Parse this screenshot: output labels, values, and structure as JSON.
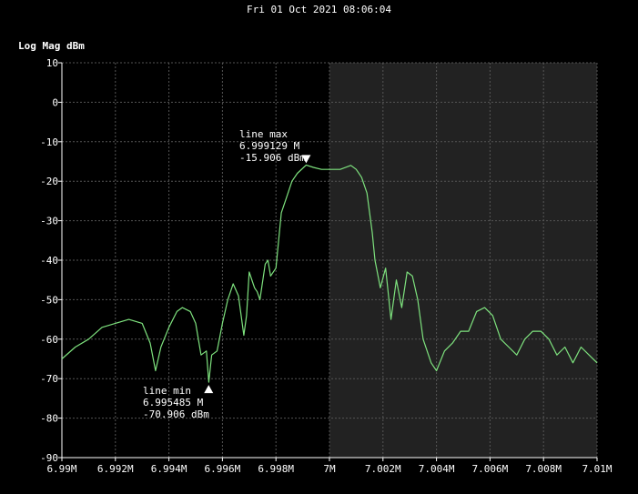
{
  "header": {
    "timestamp": "Fri 01 Oct 2021 08:06:04"
  },
  "chart_data": {
    "type": "line",
    "title": "",
    "ylabel": "Log Mag dBm",
    "xlabel": "",
    "xlim": [
      6.99,
      7.01
    ],
    "ylim": [
      -90,
      10
    ],
    "grid": true,
    "highlight_band": [
      7.0,
      7.01
    ],
    "colors": {
      "trace": "#7ee27e",
      "highlight": "#222222",
      "grid": "#555555"
    },
    "x_ticks": [
      {
        "v": 6.99,
        "label": "6.99M"
      },
      {
        "v": 6.992,
        "label": "6.992M"
      },
      {
        "v": 6.994,
        "label": "6.994M"
      },
      {
        "v": 6.996,
        "label": "6.996M"
      },
      {
        "v": 6.998,
        "label": "6.998M"
      },
      {
        "v": 7.0,
        "label": "7M"
      },
      {
        "v": 7.002,
        "label": "7.002M"
      },
      {
        "v": 7.004,
        "label": "7.004M"
      },
      {
        "v": 7.006,
        "label": "7.006M"
      },
      {
        "v": 7.008,
        "label": "7.008M"
      },
      {
        "v": 7.01,
        "label": "7.01M"
      }
    ],
    "y_ticks": [
      10,
      0,
      -10,
      -20,
      -30,
      -40,
      -50,
      -60,
      -70,
      -80,
      -90
    ],
    "series": [
      {
        "x": [
          6.99,
          6.9905,
          6.991,
          6.9915,
          6.992,
          6.9925,
          6.993,
          6.9933,
          6.9935,
          6.9937,
          6.994,
          6.9943,
          6.9945,
          6.9948,
          6.995,
          6.9952,
          6.9954,
          6.99549,
          6.9956,
          6.9958,
          6.996,
          6.9962,
          6.9964,
          6.9966,
          6.9968,
          6.9969,
          6.997,
          6.9972,
          6.9973,
          6.9974,
          6.9976,
          6.9977,
          6.9978,
          6.998,
          6.9982,
          6.9984,
          6.9986,
          6.9988,
          6.99913,
          6.9994,
          6.9997,
          7.0,
          7.0004,
          7.0008,
          7.001,
          7.0012,
          7.0014,
          7.0016,
          7.0017,
          7.0019,
          7.0021,
          7.0023,
          7.0025,
          7.0027,
          7.0029,
          7.0031,
          7.0033,
          7.0035,
          7.0038,
          7.004,
          7.0043,
          7.0046,
          7.0049,
          7.0052,
          7.0055,
          7.0058,
          7.0061,
          7.0064,
          7.0067,
          7.007,
          7.0073,
          7.0076,
          7.0079,
          7.0082,
          7.0085,
          7.0088,
          7.0091,
          7.0094,
          7.0097,
          7.01
        ],
        "y": [
          -65,
          -62,
          -60,
          -57,
          -56,
          -55,
          -56,
          -61,
          -68,
          -62,
          -57,
          -53,
          -52,
          -53,
          -56,
          -64,
          -63,
          -70.9,
          -64,
          -63,
          -56,
          -50,
          -46,
          -49,
          -59,
          -54,
          -43,
          -47,
          -48,
          -50,
          -41,
          -40,
          -44,
          -42,
          -28,
          -24,
          -20,
          -18,
          -15.9,
          -16.5,
          -17,
          -17,
          -17,
          -16,
          -17,
          -19,
          -23,
          -33,
          -40,
          -47,
          -42,
          -55,
          -45,
          -52,
          -43,
          -44,
          -50,
          -60,
          -66,
          -68,
          -63,
          -61,
          -58,
          -58,
          -53,
          -52,
          -54,
          -60,
          -62,
          -64,
          -60,
          -58,
          -58,
          -60,
          -64,
          -62,
          -66,
          -62,
          -64,
          -66
        ]
      }
    ],
    "markers": [
      {
        "type": "max",
        "x": 6.999129,
        "y": -15.906,
        "lines": [
          "line max",
          "6.999129 M",
          "-15.906 dBm"
        ]
      },
      {
        "type": "min",
        "x": 6.995485,
        "y": -70.906,
        "lines": [
          "line min",
          "6.995485 M",
          "-70.906 dBm"
        ]
      }
    ]
  }
}
